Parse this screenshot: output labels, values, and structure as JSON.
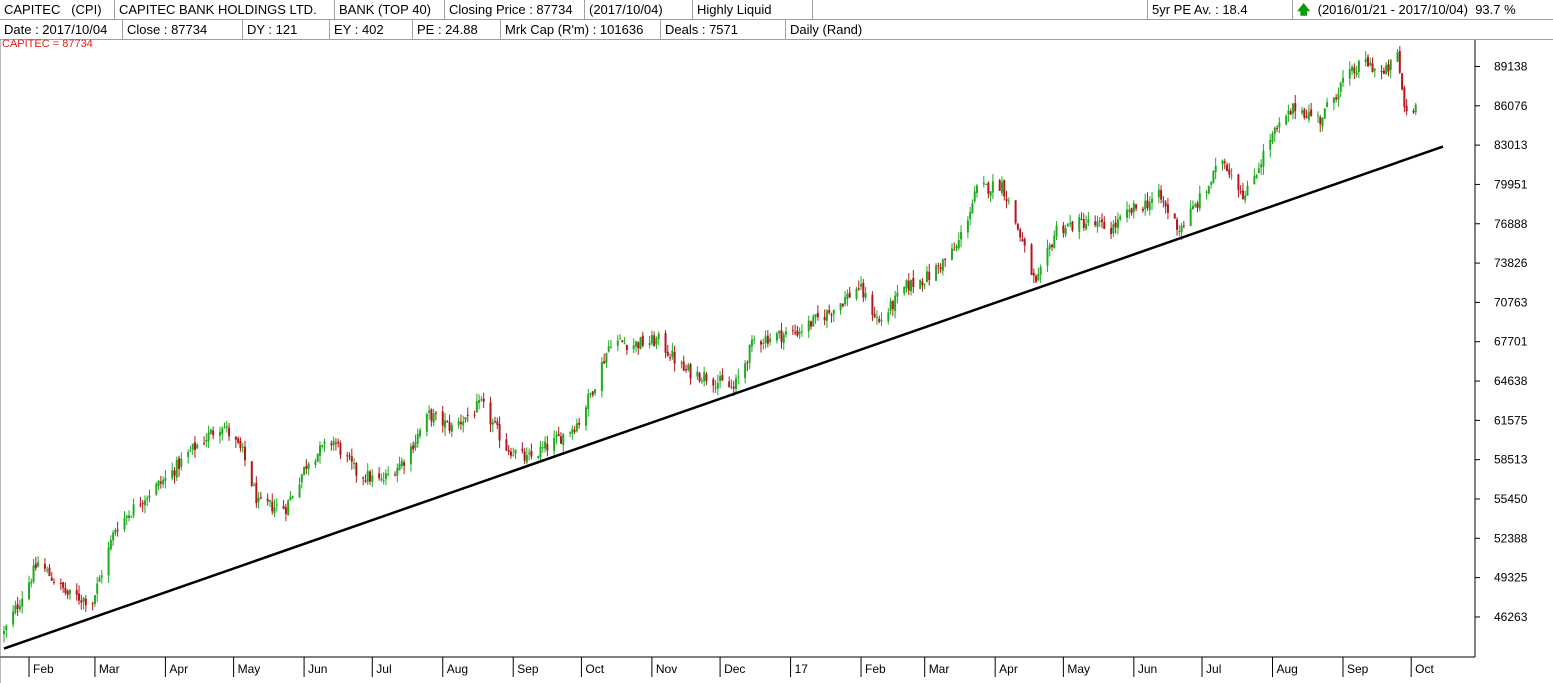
{
  "header": {
    "code": "CAPITEC",
    "symbol": "(CPI)",
    "company": "CAPITEC BANK HOLDINGS LTD.",
    "sector": "BANK (TOP 40)",
    "closing_price": "Closing Price : 87734",
    "closing_date": "(2017/10/04)",
    "liquidity": "Highly Liquid",
    "pe_average": "5yr PE Av. : 18.4",
    "range_arrow": "up-arrow-icon",
    "range": "(2016/01/21 - 2017/10/04)",
    "range_pct": "93.7 %"
  },
  "stats": {
    "date": "Date : 2017/10/04",
    "close": "Close : 87734",
    "dy": "DY : 121",
    "ey": "EY : 402",
    "pe": "PE : 24.88",
    "mkt_cap": "Mrk Cap (R'm) : 101636",
    "deals": "Deals : 7571",
    "period": "Daily (Rand)"
  },
  "series_label": "CAPITEC = 87734",
  "colors": {
    "up": "#1faa1f",
    "down": "#b3161b",
    "trendline": "#000000",
    "label": "#e0201a"
  },
  "chart_data": {
    "type": "candlestick",
    "x_tick_labels": [
      "Feb",
      "Mar",
      "Apr",
      "May",
      "Jun",
      "Jul",
      "Aug",
      "Sep",
      "Oct",
      "Nov",
      "Dec",
      "17",
      "Feb",
      "Mar",
      "Apr",
      "May",
      "Jun",
      "Jul",
      "Aug",
      "Sep",
      "Oct"
    ],
    "y_tick_labels": [
      89138,
      86076,
      83013,
      79951,
      76888,
      73826,
      70763,
      67701,
      64638,
      61575,
      58513,
      55450,
      52388,
      49325,
      46263
    ],
    "ylim": [
      43300,
      91200
    ],
    "y_axis_side": "right",
    "x_range": [
      "2016-01-21",
      "2017-10-04"
    ],
    "grid": false,
    "series": [
      {
        "name": "CAPITEC",
        "close_path": [
          [
            "2016-01-21",
            45000
          ],
          [
            "2016-02-05",
            50500
          ],
          [
            "2016-02-18",
            48000
          ],
          [
            "2016-02-29",
            47500
          ],
          [
            "2016-03-10",
            53200
          ],
          [
            "2016-03-22",
            55500
          ],
          [
            "2016-04-01",
            57000
          ],
          [
            "2016-04-14",
            59500
          ],
          [
            "2016-04-26",
            61300
          ],
          [
            "2016-05-05",
            59000
          ],
          [
            "2016-05-12",
            55000
          ],
          [
            "2016-05-24",
            54800
          ],
          [
            "2016-06-03",
            58500
          ],
          [
            "2016-06-14",
            60000
          ],
          [
            "2016-06-24",
            57500
          ],
          [
            "2016-07-05",
            56800
          ],
          [
            "2016-07-15",
            58500
          ],
          [
            "2016-07-26",
            62000
          ],
          [
            "2016-08-05",
            61000
          ],
          [
            "2016-08-18",
            62800
          ],
          [
            "2016-08-29",
            59500
          ],
          [
            "2016-09-07",
            58500
          ],
          [
            "2016-09-20",
            60000
          ],
          [
            "2016-09-30",
            61500
          ],
          [
            "2016-10-07",
            64500
          ],
          [
            "2016-10-14",
            67800
          ],
          [
            "2016-10-24",
            67500
          ],
          [
            "2016-11-04",
            67800
          ],
          [
            "2016-11-15",
            65500
          ],
          [
            "2016-11-25",
            65000
          ],
          [
            "2016-12-07",
            64000
          ],
          [
            "2016-12-16",
            67800
          ],
          [
            "2017-01-04",
            68500
          ],
          [
            "2017-01-18",
            70000
          ],
          [
            "2017-01-31",
            72000
          ],
          [
            "2017-02-09",
            69200
          ],
          [
            "2017-02-21",
            72000
          ],
          [
            "2017-03-03",
            72800
          ],
          [
            "2017-03-15",
            75000
          ],
          [
            "2017-03-24",
            79500
          ],
          [
            "2017-04-04",
            80000
          ],
          [
            "2017-04-11",
            76500
          ],
          [
            "2017-04-19",
            72000
          ],
          [
            "2017-04-28",
            76500
          ],
          [
            "2017-05-10",
            77000
          ],
          [
            "2017-05-22",
            76500
          ],
          [
            "2017-06-01",
            78000
          ],
          [
            "2017-06-12",
            79000
          ],
          [
            "2017-06-21",
            76500
          ],
          [
            "2017-07-03",
            79500
          ],
          [
            "2017-07-10",
            82000
          ],
          [
            "2017-07-20",
            79000
          ],
          [
            "2017-07-31",
            83500
          ],
          [
            "2017-08-11",
            86000
          ],
          [
            "2017-08-22",
            85000
          ],
          [
            "2017-09-01",
            88000
          ],
          [
            "2017-09-11",
            89500
          ],
          [
            "2017-09-19",
            88500
          ],
          [
            "2017-09-25",
            90000
          ],
          [
            "2017-09-28",
            86000
          ],
          [
            "2017-10-02",
            85500
          ],
          [
            "2017-10-04",
            87734
          ]
        ]
      }
    ],
    "trendline": [
      [
        "2016-01-21",
        43800
      ],
      [
        "2017-10-04",
        82900
      ]
    ]
  }
}
